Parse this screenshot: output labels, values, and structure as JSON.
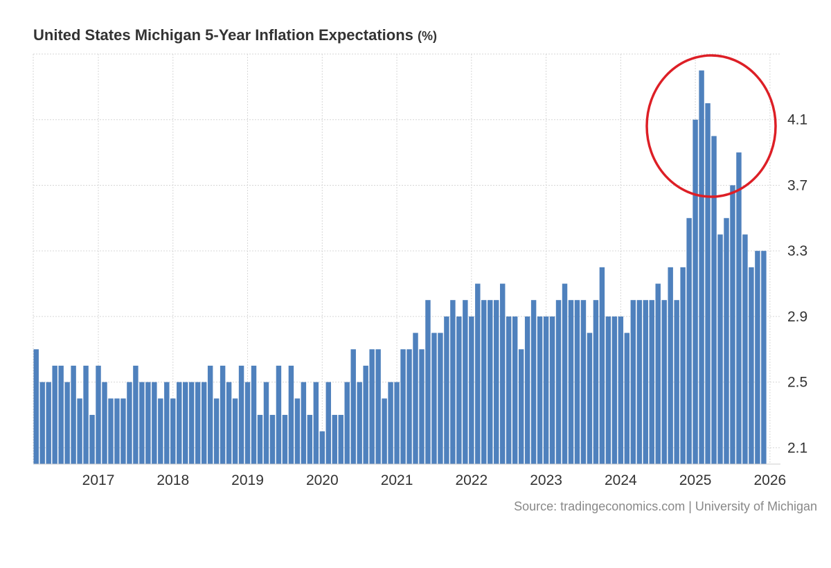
{
  "title": "United States Michigan 5-Year Inflation Expectations",
  "title_unit": "(%)",
  "source": "Source: tradingeconomics.com | University of Michigan",
  "chart_data": {
    "type": "bar",
    "title": "United States Michigan 5-Year Inflation Expectations",
    "unit": "%",
    "bar_color": "#4f81bd",
    "highlight_color": "#dd1f26",
    "grid": true,
    "ylim": [
      2.0,
      4.5
    ],
    "y_ticks": [
      2.1,
      2.5,
      2.9,
      3.3,
      3.7,
      4.1
    ],
    "y_tick_labels": [
      "2.1",
      "2.5",
      "2.9",
      "3.3",
      "3.7",
      "4.1"
    ],
    "x_tick_labels": [
      "2017",
      "2018",
      "2019",
      "2020",
      "2021",
      "2022",
      "2023",
      "2024",
      "2025",
      "2026"
    ],
    "annotation": "circle around the 2025 peak",
    "series": [
      {
        "frequency": "monthly",
        "start": "2016-03",
        "end": "2026-01",
        "values": [
          2.7,
          2.5,
          2.5,
          2.6,
          2.6,
          2.5,
          2.6,
          2.4,
          2.6,
          2.3,
          2.6,
          2.5,
          2.4,
          2.4,
          2.4,
          2.5,
          2.6,
          2.5,
          2.5,
          2.5,
          2.4,
          2.5,
          2.4,
          2.5,
          2.5,
          2.5,
          2.5,
          2.5,
          2.6,
          2.4,
          2.6,
          2.5,
          2.4,
          2.6,
          2.5,
          2.6,
          2.3,
          2.5,
          2.3,
          2.6,
          2.3,
          2.6,
          2.4,
          2.5,
          2.3,
          2.5,
          2.2,
          2.5,
          2.3,
          2.3,
          2.5,
          2.7,
          2.5,
          2.6,
          2.7,
          2.7,
          2.4,
          2.5,
          2.5,
          2.7,
          2.7,
          2.8,
          2.7,
          3.0,
          2.8,
          2.8,
          2.9,
          3.0,
          2.9,
          3.0,
          2.9,
          3.1,
          3.0,
          3.0,
          3.0,
          3.1,
          2.9,
          2.9,
          2.7,
          2.9,
          3.0,
          2.9,
          2.9,
          2.9,
          3.0,
          3.1,
          3.0,
          3.0,
          3.0,
          2.8,
          3.0,
          3.2,
          2.9,
          2.9,
          2.9,
          2.8,
          3.0,
          3.0,
          3.0,
          3.0,
          3.1,
          3.0,
          3.2,
          3.0,
          3.2,
          3.5,
          4.1,
          4.4,
          4.2,
          4.0,
          3.4,
          3.5,
          3.7,
          3.9,
          3.4,
          3.2,
          3.3,
          3.3
        ]
      }
    ]
  }
}
